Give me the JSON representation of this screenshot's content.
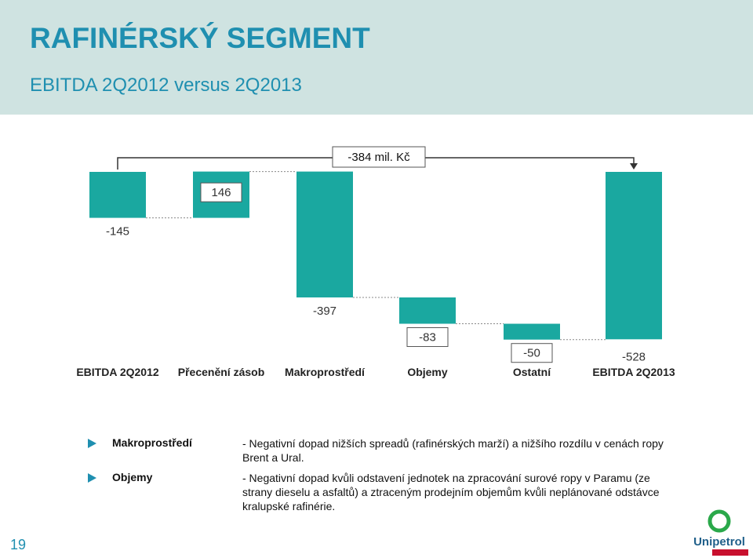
{
  "header": {
    "title": "RAFINÉRSKÝ SEGMENT",
    "subtitle": "EBITDA 2Q2012 versus 2Q2013"
  },
  "chart_data": {
    "type": "bar",
    "subtype": "waterfall",
    "categories": [
      "EBITDA 2Q2012",
      "Přecenění zásob",
      "Makroprostředí",
      "Objemy",
      "Ostatní",
      "EBITDA 2Q2013"
    ],
    "values": [
      -145,
      146,
      -397,
      -83,
      -50,
      -528
    ],
    "labels": [
      "-145",
      "146",
      "-397",
      "-83",
      "-50",
      "-528"
    ],
    "bar_kinds": [
      "total",
      "delta",
      "delta",
      "delta",
      "delta",
      "total"
    ],
    "annotation": "-384 mil. Kč",
    "colors": {
      "bar": "#1aa8a0",
      "label_box_border": "#555555",
      "connector": "#888888"
    }
  },
  "bullets": [
    {
      "label": "Makroprostředí",
      "text": "- Negativní dopad nižších spreadů (rafinérských marží) a nižšího rozdílu v cenách ropy Brent a Ural."
    },
    {
      "label": "Objemy",
      "text": "- Negativní dopad kvůli odstavení jednotek na zpracování surové ropy v Paramu (ze strany dieselu a asfaltů) a ztraceným prodejním objemům kvůli neplánované odstávce kralupské rafinérie."
    }
  ],
  "footer": {
    "page_number": "19",
    "logo_text": "Unipetrol"
  }
}
